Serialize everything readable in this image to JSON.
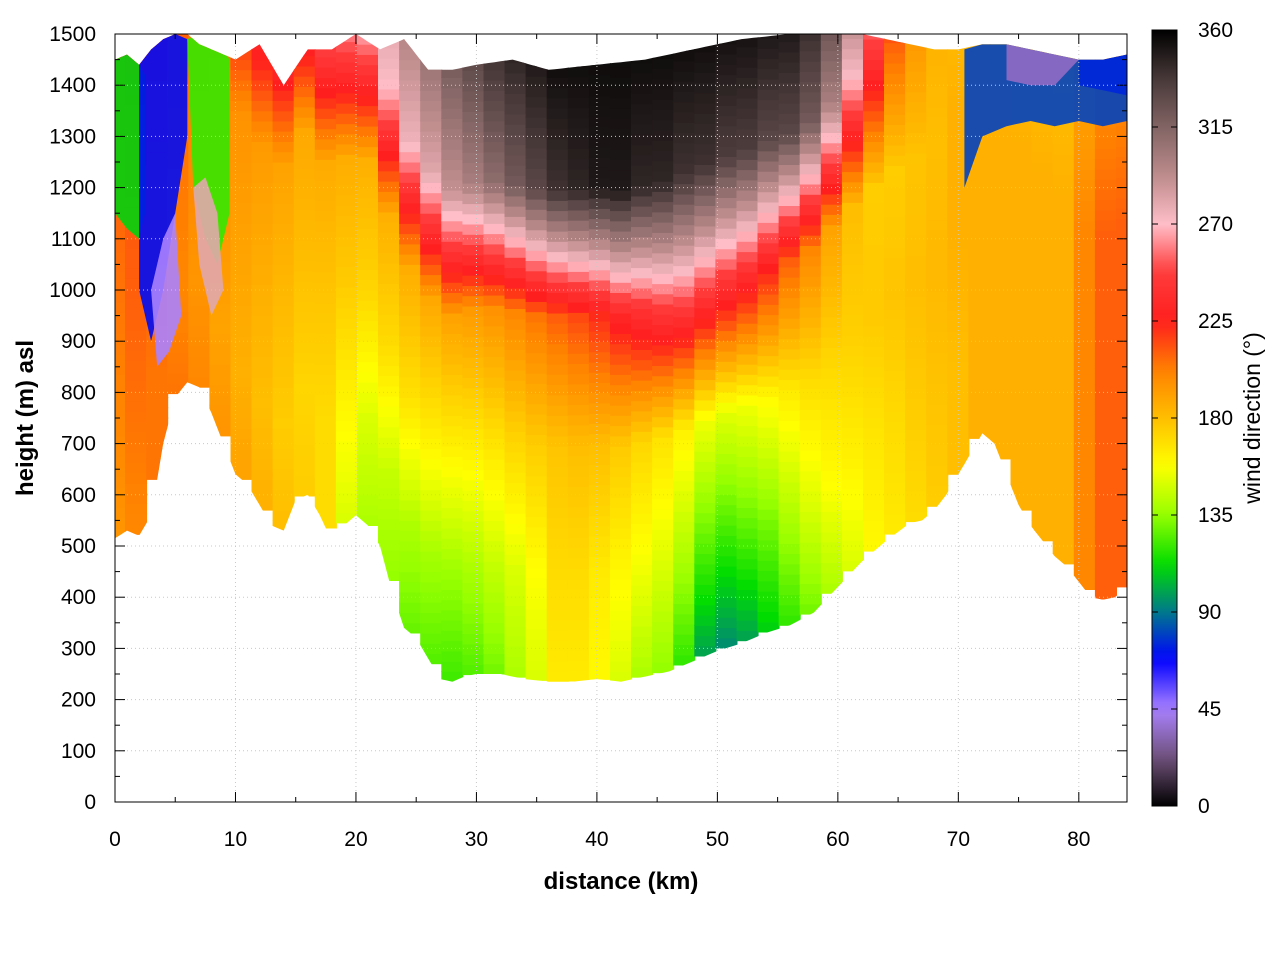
{
  "chart_data": {
    "type": "heatmap",
    "title": "",
    "xlabel": "distance (km)",
    "ylabel": "height (m) asl",
    "colorbar_label": "wind direction (°)",
    "xlim": [
      0,
      84
    ],
    "ylim": [
      0,
      1500
    ],
    "x_ticks": [
      0,
      10,
      20,
      30,
      40,
      50,
      60,
      70,
      80
    ],
    "y_ticks": [
      0,
      100,
      200,
      300,
      400,
      500,
      600,
      700,
      800,
      900,
      1000,
      1100,
      1200,
      1300,
      1400,
      1500
    ],
    "colorbar_ticks": [
      0,
      45,
      90,
      135,
      180,
      225,
      270,
      315,
      360
    ],
    "colorbar_range": [
      0,
      360
    ],
    "grid": true,
    "terrain": {
      "x": [
        0,
        1,
        2,
        3,
        4,
        5,
        6,
        7,
        8,
        9,
        10,
        11,
        12,
        13,
        14,
        15,
        16,
        17,
        18,
        19,
        20,
        21,
        22,
        23,
        24,
        25,
        26,
        27,
        28,
        29,
        30,
        32,
        34,
        36,
        38,
        40,
        42,
        44,
        46,
        48,
        50,
        52,
        54,
        56,
        58,
        60,
        62,
        64,
        66,
        67,
        68,
        69,
        70,
        71,
        72,
        73,
        74,
        75,
        76,
        77,
        78,
        79,
        80,
        81,
        82,
        83,
        84
      ],
      "y": [
        515,
        530,
        520,
        560,
        700,
        790,
        820,
        810,
        760,
        700,
        640,
        620,
        580,
        540,
        530,
        590,
        600,
        560,
        510,
        540,
        560,
        540,
        500,
        410,
        340,
        320,
        280,
        240,
        235,
        245,
        250,
        250,
        240,
        235,
        235,
        240,
        235,
        245,
        255,
        275,
        295,
        310,
        330,
        345,
        370,
        420,
        470,
        510,
        545,
        550,
        570,
        600,
        640,
        680,
        720,
        700,
        640,
        580,
        540,
        510,
        480,
        460,
        430,
        400,
        395,
        400,
        420
      ]
    },
    "model_top": {
      "x": [
        0,
        1,
        2,
        3,
        4,
        5,
        6,
        7,
        8,
        9,
        10,
        12,
        14,
        16,
        18,
        20,
        22,
        24,
        26,
        28,
        30,
        33,
        36,
        40,
        44,
        48,
        52,
        56,
        60,
        62,
        64,
        66,
        68,
        70,
        72,
        74,
        76,
        78,
        80,
        82,
        84
      ],
      "y": [
        1450,
        1460,
        1440,
        1470,
        1490,
        1500,
        1500,
        1480,
        1470,
        1460,
        1450,
        1480,
        1400,
        1470,
        1470,
        1500,
        1470,
        1490,
        1430,
        1430,
        1440,
        1450,
        1430,
        1440,
        1450,
        1470,
        1490,
        1500,
        1500,
        1500,
        1490,
        1480,
        1470,
        1470,
        1480,
        1480,
        1470,
        1460,
        1450,
        1450,
        1460
      ]
    },
    "layers": [
      {
        "height_agl": 0,
        "direction": [
          195,
          200,
          205,
          205,
          200,
          195,
          190,
          185,
          180,
          175,
          170,
          150,
          140,
          135,
          128,
          125,
          122,
          125,
          130,
          140,
          150,
          165,
          165,
          160,
          150,
          140,
          135,
          120,
          100,
          95,
          100,
          110,
          120,
          130,
          140,
          150,
          160,
          165,
          170,
          175,
          180,
          185,
          185,
          185,
          185,
          185,
          200,
          210,
          210
        ]
      },
      {
        "height_agl": 200,
        "direction": [
          200,
          205,
          205,
          200,
          195,
          190,
          185,
          180,
          175,
          172,
          170,
          160,
          150,
          145,
          140,
          138,
          136,
          140,
          145,
          150,
          158,
          170,
          170,
          165,
          160,
          155,
          150,
          140,
          125,
          120,
          125,
          130,
          140,
          150,
          158,
          162,
          166,
          170,
          175,
          178,
          180,
          185,
          185,
          185,
          185,
          185,
          200,
          210,
          210
        ]
      },
      {
        "height_agl": 450,
        "direction": [
          205,
          210,
          210,
          205,
          200,
          195,
          190,
          186,
          182,
          180,
          178,
          175,
          172,
          170,
          168,
          165,
          163,
          165,
          168,
          172,
          175,
          178,
          180,
          180,
          176,
          172,
          168,
          163,
          155,
          152,
          155,
          160,
          165,
          170,
          172,
          174,
          176,
          178,
          180,
          182,
          185,
          185,
          185,
          185,
          185,
          185,
          200,
          210,
          210
        ]
      },
      {
        "height_agl": 700,
        "direction": [
          210,
          212,
          212,
          210,
          205,
          200,
          196,
          193,
          190,
          188,
          187,
          186,
          185,
          185,
          186,
          188,
          190,
          193,
          196,
          200,
          205,
          210,
          215,
          222,
          230,
          238,
          245,
          250,
          245,
          240,
          235,
          225,
          210,
          200,
          190,
          180,
          175,
          175,
          178,
          180,
          185,
          185,
          185,
          185,
          185,
          185,
          200,
          210,
          210
        ]
      },
      {
        "height_agl": 950,
        "direction": [
          215,
          220,
          225,
          228,
          230,
          232,
          235,
          240,
          245,
          250,
          255,
          260,
          265,
          270,
          275,
          280,
          290,
          300,
          310,
          320,
          330,
          340,
          345,
          350,
          350,
          345,
          345,
          340,
          340,
          335,
          335,
          330,
          330,
          320,
          300,
          270,
          240,
          210,
          195,
          185,
          180,
          180,
          180,
          180,
          180,
          180,
          190,
          200,
          200
        ]
      },
      {
        "height_agl": 1200,
        "direction": [
          220,
          225,
          228,
          230,
          235,
          240,
          245,
          250,
          255,
          260,
          265,
          270,
          280,
          290,
          300,
          310,
          320,
          330,
          340,
          345,
          350,
          355,
          355,
          355,
          355,
          355,
          355,
          355,
          355,
          355,
          355,
          355,
          355,
          350,
          340,
          320,
          300,
          280,
          260,
          240,
          220,
          210,
          200,
          190,
          185,
          180,
          190,
          200,
          200
        ]
      }
    ],
    "layer_x": [
      0,
      1.75,
      3.5,
      5.25,
      7,
      8.75,
      10.5,
      12.25,
      14,
      15.75,
      17.5,
      19.25,
      21,
      22.75,
      24.5,
      26.25,
      28,
      29.75,
      31.5,
      33.25,
      35,
      36.75,
      38.5,
      40.25,
      42,
      43.75,
      45.5,
      47.25,
      49,
      50.75,
      52.5,
      54.25,
      56,
      57.75,
      59.5,
      61.25,
      63,
      64.75,
      66.5,
      68.25,
      70,
      71.75,
      73.5,
      75.25,
      77,
      78.75,
      80.5,
      82.25,
      84
    ],
    "patches": [
      {
        "x": [
          0,
          1,
          2,
          2.5,
          2.5,
          2,
          1,
          0
        ],
        "y": [
          1450,
          1460,
          1440,
          1420,
          1150,
          1100,
          1120,
          1150
        ],
        "direction": 110
      },
      {
        "x": [
          2,
          3,
          4,
          5,
          6,
          6,
          5,
          4,
          3,
          2
        ],
        "y": [
          1440,
          1470,
          1490,
          1500,
          1490,
          1300,
          1150,
          1000,
          900,
          1000
        ],
        "direction": 70
      },
      {
        "x": [
          3,
          4,
          5,
          5.5,
          4.5,
          3.5
        ],
        "y": [
          1000,
          1100,
          1150,
          950,
          880,
          850
        ],
        "direction": 45
      },
      {
        "x": [
          6,
          7,
          8,
          9,
          9.5,
          9.5,
          8.5,
          7.5,
          6.5
        ],
        "y": [
          1490,
          1500,
          1480,
          1470,
          1450,
          1150,
          1050,
          1100,
          1200
        ],
        "direction": 120
      },
      {
        "x": [
          6.5,
          7.5,
          8.5,
          9,
          8,
          7
        ],
        "y": [
          1200,
          1220,
          1150,
          1000,
          950,
          1050
        ],
        "direction": 280
      },
      {
        "x": [
          70.5,
          72,
          74,
          76,
          78,
          80,
          82,
          84,
          84,
          82,
          80,
          78,
          76,
          74,
          72,
          70.5
        ],
        "y": [
          1470,
          1480,
          1480,
          1470,
          1460,
          1450,
          1450,
          1460,
          1330,
          1320,
          1330,
          1320,
          1330,
          1320,
          1300,
          1200
        ],
        "direction": 80
      },
      {
        "x": [
          80,
          82,
          84,
          84,
          82,
          80
        ],
        "y": [
          1450,
          1450,
          1460,
          1380,
          1390,
          1400
        ],
        "direction": 75
      },
      {
        "x": [
          74,
          76,
          78,
          80,
          78,
          76,
          74
        ],
        "y": [
          1480,
          1470,
          1460,
          1450,
          1400,
          1400,
          1410
        ],
        "direction": 35
      }
    ]
  }
}
